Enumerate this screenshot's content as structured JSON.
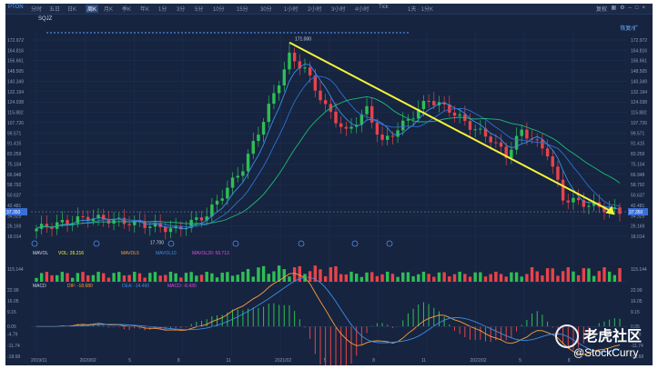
{
  "toolbar": {
    "ticker": "PTON",
    "timeframes": [
      "分时",
      "五日",
      "日K",
      "周K",
      "月K",
      "季K",
      "年K",
      "1分",
      "3分",
      "5分",
      "10分",
      "15分",
      "30分",
      "1小时",
      "2小时",
      "3小时",
      "4小时",
      "Tick",
      "1天 · 1分K"
    ],
    "active_index": 3,
    "right_label": "复权",
    "window_icons": [
      "split-icon",
      "settings-icon",
      "minimize-icon",
      "maximize-icon",
      "close-icon"
    ]
  },
  "symbol_label": "SQJZ",
  "fullscreen_label": "恢复/扩",
  "watermark": {
    "brand": "老虎社区",
    "user": "@StockCurry"
  },
  "indicator_labels": {
    "mavol": {
      "name": "MAVOL",
      "vol": "VOL: 26.216",
      "ma5": "MAVOL5",
      "ma10": "MAVOL10",
      "ma20": "MAVOL20: 59.713"
    },
    "macd": {
      "name": "MACD",
      "dif": "DIF: -18.680",
      "dea": "DEA: -14.460",
      "macd": "MACD: -8.430"
    }
  },
  "colors": {
    "bg": "#16243f",
    "up": "#2fbe56",
    "down": "#e8434a",
    "ma5": "#3a8ee8",
    "ma10": "#2f6fd0",
    "ma20": "#1fb87a",
    "trend": "#f5f33a",
    "dif": "#ff9d3a",
    "dea": "#3a8ee8"
  },
  "chart_data": {
    "type": "candlestick",
    "title": "",
    "x_tick_labels": [
      "2019/11",
      "2020/02",
      "5",
      "8",
      "11",
      "2021/02",
      "5",
      "8",
      "11",
      "2022/02",
      "5",
      "8"
    ],
    "price_axis": {
      "min": 18.014,
      "max": 172.972,
      "ticks": [
        172.972,
        164.816,
        156.661,
        148.505,
        140.349,
        132.194,
        124.038,
        115.882,
        107.726,
        99.571,
        91.415,
        83.259,
        75.104,
        66.948,
        58.792,
        50.637,
        42.481,
        34.325,
        26.169,
        18.014
      ]
    },
    "annotations": {
      "high_label": "171.000",
      "low_label": "17.700",
      "current_price_marker": "37.350"
    },
    "trend_arrow": {
      "from_week": 49,
      "from_price": 171,
      "to_week": 112,
      "to_price": 35
    },
    "weeks_count": 114,
    "moving_averages": [
      "MA5",
      "MA10",
      "MA20"
    ],
    "volume_axis": {
      "top_label": "115.144",
      "bottom_label": "0.000"
    },
    "macd_axis": {
      "ticks": [
        "22.99",
        "16.05",
        "9.15",
        "0.05",
        "-4.79",
        "-11.74",
        "-18.68"
      ],
      "ylim": [
        -18.68,
        22.99
      ]
    }
  }
}
